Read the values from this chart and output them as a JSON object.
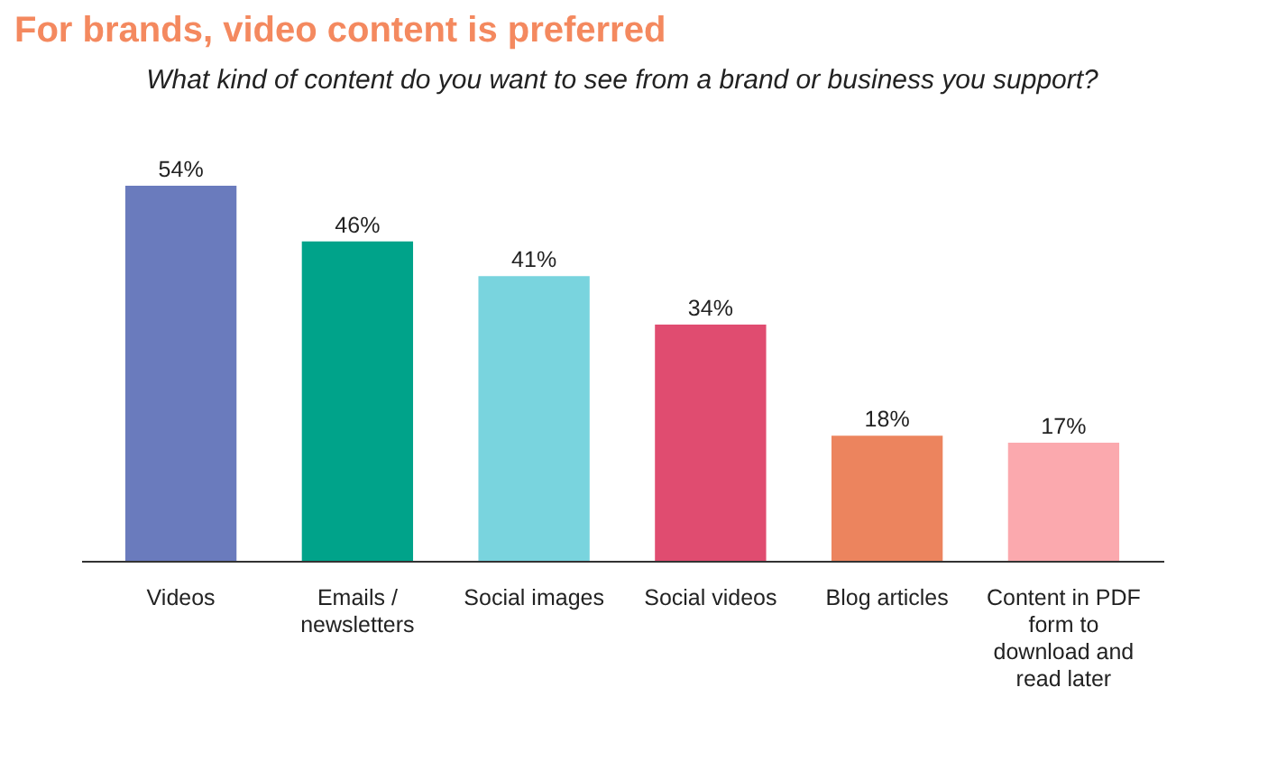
{
  "chart_data": {
    "type": "bar",
    "title": "For brands, video content is preferred",
    "subtitle": "What kind of content do you want to see from a brand or business you support?",
    "categories": [
      "Videos",
      "Emails / newsletters",
      "Social images",
      "Social videos",
      "Blog articles",
      "Content in PDF form to download and read later"
    ],
    "values": [
      54,
      46,
      41,
      34,
      18,
      17
    ],
    "colors": [
      "#6a7bbd",
      "#00a38a",
      "#79d4de",
      "#e04c70",
      "#ec845e",
      "#fba9ae"
    ],
    "value_labels": [
      "54%",
      "46%",
      "41%",
      "34%",
      "18%",
      "17%"
    ],
    "tick_labels": "x"
  }
}
